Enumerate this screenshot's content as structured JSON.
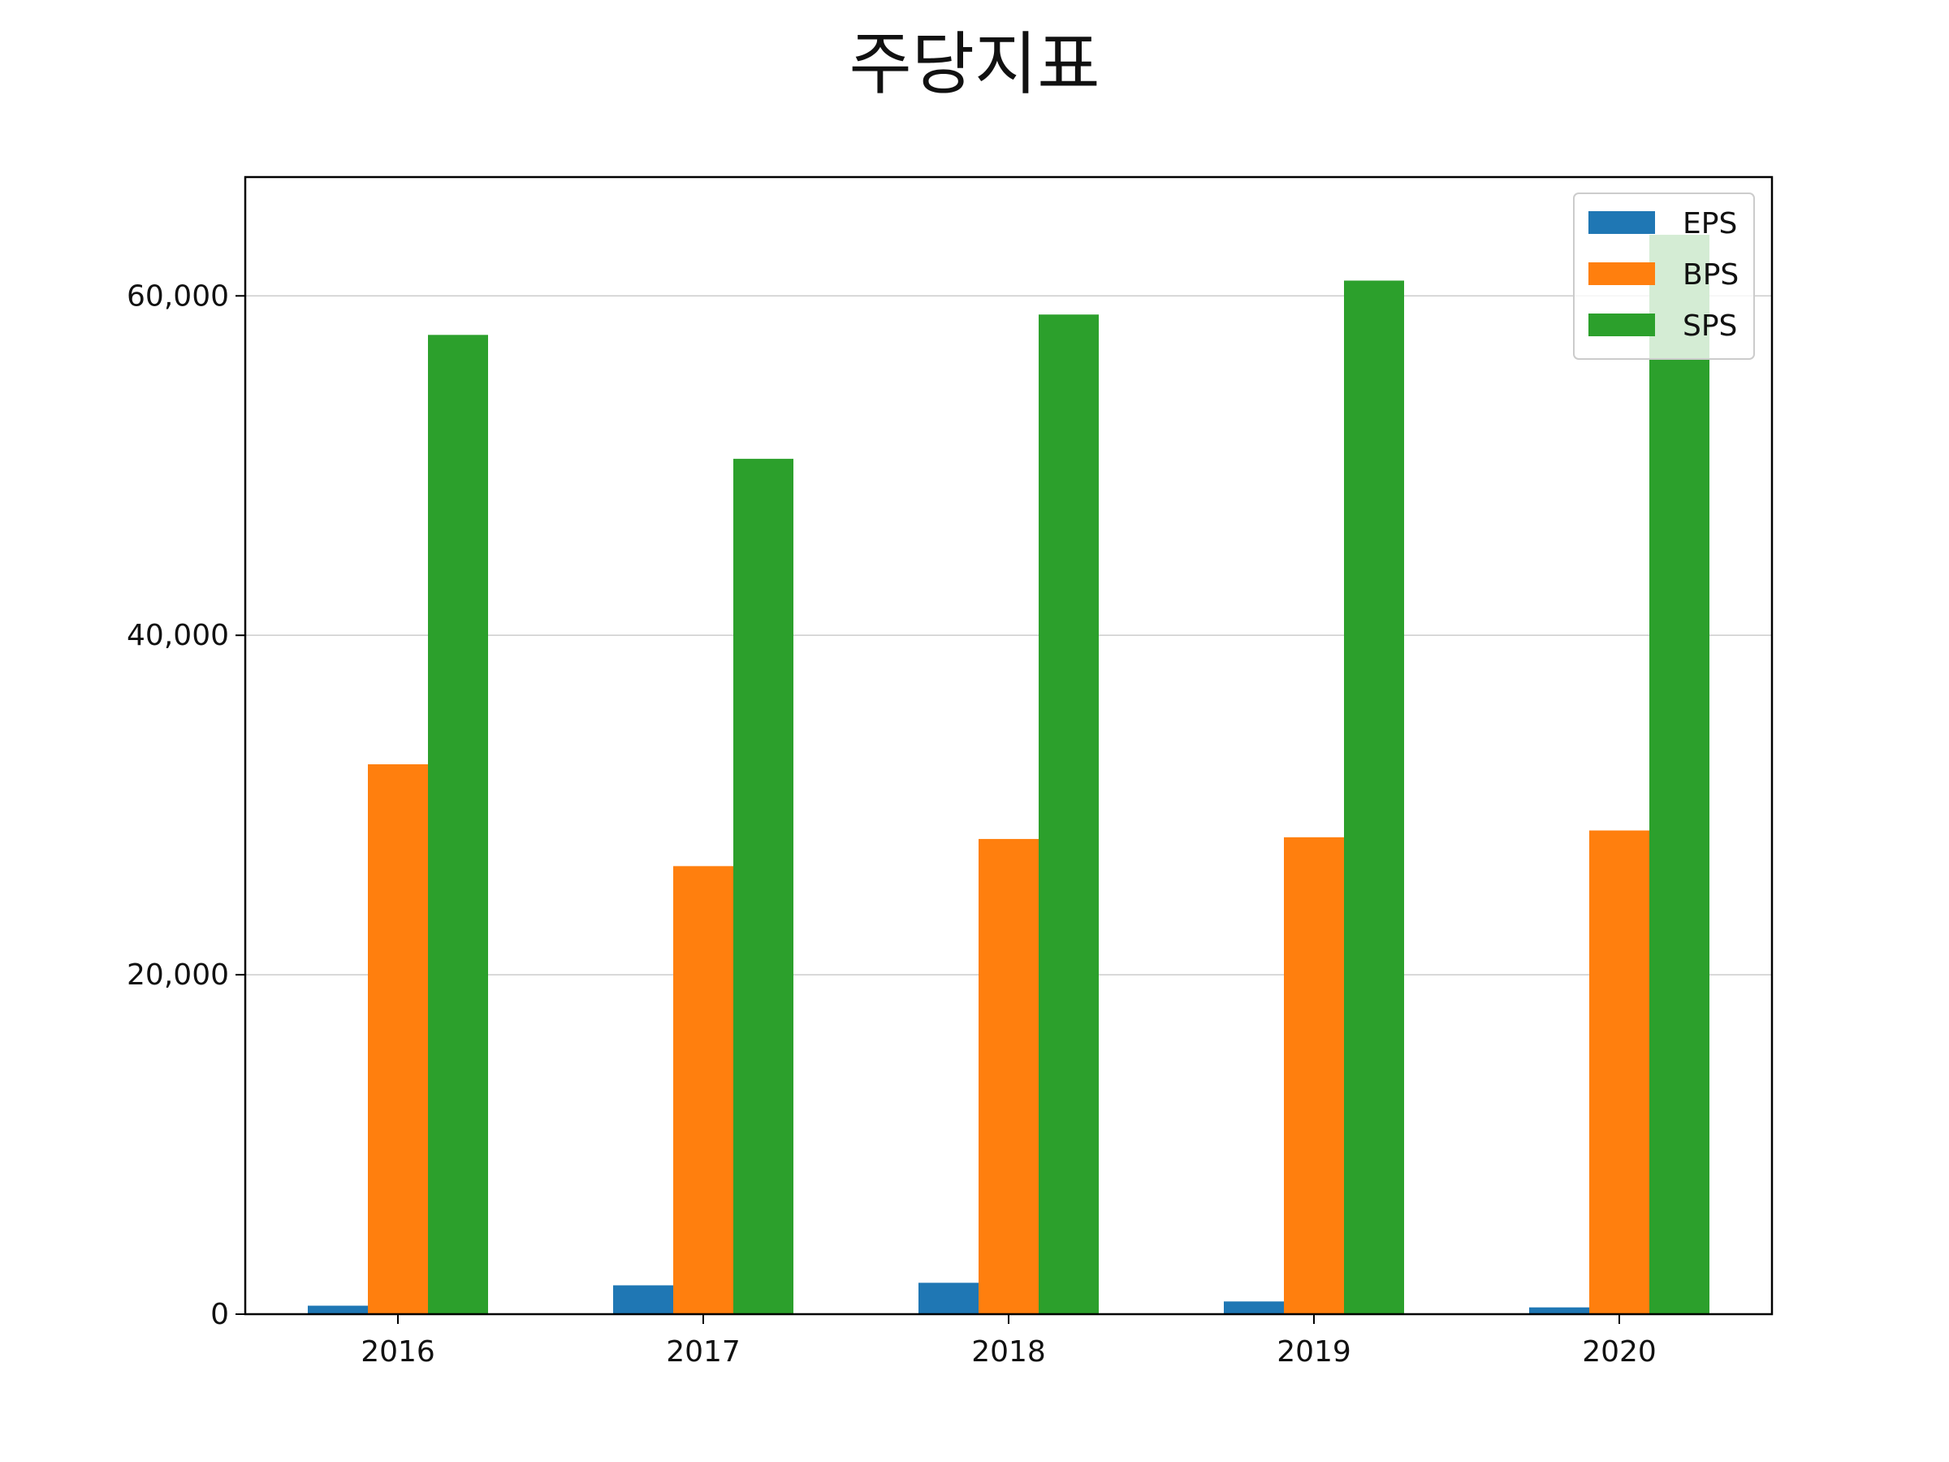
{
  "chart_data": {
    "type": "bar",
    "title": "주당지표",
    "xlabel": "",
    "ylabel": "",
    "categories": [
      "2016",
      "2017",
      "2018",
      "2019",
      "2020"
    ],
    "series": [
      {
        "name": "EPS",
        "color": "#1f77b4",
        "values": [
          500,
          1700,
          1850,
          750,
          400
        ]
      },
      {
        "name": "BPS",
        "color": "#ff7f0e",
        "values": [
          32400,
          26400,
          28000,
          28100,
          28500
        ]
      },
      {
        "name": "SPS",
        "color": "#2ca02c",
        "values": [
          57700,
          50400,
          58900,
          60900,
          63600
        ]
      }
    ],
    "ylim": [
      0,
      67000
    ],
    "yticks": [
      0,
      20000,
      40000,
      60000
    ],
    "ytick_labels": [
      "0",
      "20,000",
      "40,000",
      "60,000"
    ],
    "grid": "horizontal",
    "legend_position": "top-right"
  }
}
